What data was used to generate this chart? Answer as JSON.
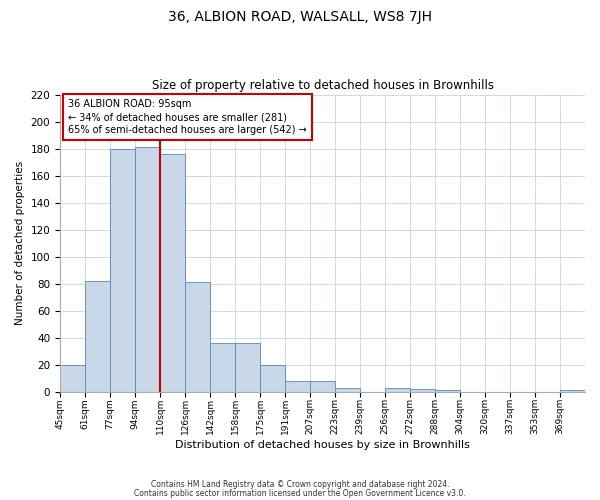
{
  "title": "36, ALBION ROAD, WALSALL, WS8 7JH",
  "subtitle": "Size of property relative to detached houses in Brownhills",
  "xlabel": "Distribution of detached houses by size in Brownhills",
  "ylabel": "Number of detached properties",
  "bin_labels": [
    "45sqm",
    "61sqm",
    "77sqm",
    "94sqm",
    "110sqm",
    "126sqm",
    "142sqm",
    "158sqm",
    "175sqm",
    "191sqm",
    "207sqm",
    "223sqm",
    "239sqm",
    "256sqm",
    "272sqm",
    "288sqm",
    "304sqm",
    "320sqm",
    "337sqm",
    "353sqm",
    "369sqm"
  ],
  "bar_values": [
    20,
    82,
    180,
    181,
    176,
    81,
    36,
    36,
    20,
    8,
    8,
    3,
    0,
    3,
    2,
    1,
    0,
    0,
    0,
    0,
    1
  ],
  "bar_color": "#c8d8e8",
  "bar_edge_color": "#5a8ab5",
  "vline_color": "#cc0000",
  "ylim": [
    0,
    220
  ],
  "yticks": [
    0,
    20,
    40,
    60,
    80,
    100,
    120,
    140,
    160,
    180,
    200,
    220
  ],
  "annotation_title": "36 ALBION ROAD: 95sqm",
  "annotation_line1": "← 34% of detached houses are smaller (281)",
  "annotation_line2": "65% of semi-detached houses are larger (542) →",
  "annotation_box_color": "#ffffff",
  "annotation_box_edge": "#cc0000",
  "footer_line1": "Contains HM Land Registry data © Crown copyright and database right 2024.",
  "footer_line2": "Contains public sector information licensed under the Open Government Licence v3.0.",
  "background_color": "#ffffff",
  "grid_color": "#c8d4e0"
}
